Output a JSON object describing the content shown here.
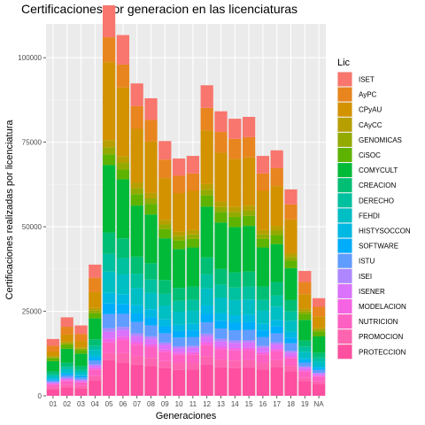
{
  "chart_data": {
    "type": "bar",
    "stacked": true,
    "title": "Certificaciones por generacion en las licenciaturas",
    "xlabel": "Generaciones",
    "ylabel": "Certificaciones realizadas por licenciatura",
    "ylim": [
      0,
      110000
    ],
    "yticks": [
      0,
      25000,
      50000,
      75000,
      100000
    ],
    "ytick_labels": [
      "0",
      "25000",
      "50000",
      "75000",
      "100000"
    ],
    "grid": true,
    "legend": {
      "title": "Lic",
      "placement": "right"
    },
    "categories": [
      "01",
      "02",
      "03",
      "04",
      "05",
      "06",
      "07",
      "08",
      "09",
      "10",
      "11",
      "12",
      "13",
      "14",
      "15",
      "16",
      "17",
      "18",
      "19",
      "NA"
    ],
    "totals": [
      16800,
      23200,
      20800,
      38800,
      105000,
      97000,
      84000,
      80000,
      68500,
      63800,
      64500,
      83500,
      76500,
      74500,
      75000,
      64500,
      66000,
      55500,
      36200,
      28300
    ],
    "series": [
      {
        "name": "ISET",
        "color": "#F8766D"
      },
      {
        "name": "AyPC",
        "color": "#E8851E"
      },
      {
        "name": "CPyAU",
        "color": "#D39200"
      },
      {
        "name": "CAyCC",
        "color": "#B79F00"
      },
      {
        "name": "GENOMICAS",
        "color": "#93AA00"
      },
      {
        "name": "CiSOC",
        "color": "#5EB300"
      },
      {
        "name": "COMYCULT",
        "color": "#00BA38"
      },
      {
        "name": "CREACION",
        "color": "#00BF74"
      },
      {
        "name": "DERECHO",
        "color": "#00C19F"
      },
      {
        "name": "FEHDI",
        "color": "#00BFC4"
      },
      {
        "name": "HISTYSOCCON",
        "color": "#00B9E3"
      },
      {
        "name": "SOFTWARE",
        "color": "#00ADFA"
      },
      {
        "name": "ISTU",
        "color": "#619CFF"
      },
      {
        "name": "ISEI",
        "color": "#AE87FF"
      },
      {
        "name": "ISENER",
        "color": "#DB72FB"
      },
      {
        "name": "MODELACION",
        "color": "#F564E3"
      },
      {
        "name": "NUTRICION",
        "color": "#FF61C3"
      },
      {
        "name": "PROMOCION",
        "color": "#FF64B0"
      },
      {
        "name": "PROTECCION",
        "color": "#FF4FA0"
      }
    ],
    "stack_fractions": [
      [
        0.12,
        0.1,
        0.08,
        0.02,
        0.02,
        0.05,
        0.18,
        0.05,
        0.03,
        0.04,
        0.02,
        0.02,
        0.03,
        0.01,
        0.02,
        0.01,
        0.05,
        0.03,
        0.12
      ],
      [
        0.12,
        0.1,
        0.09,
        0.02,
        0.02,
        0.05,
        0.18,
        0.05,
        0.03,
        0.04,
        0.02,
        0.02,
        0.03,
        0.01,
        0.02,
        0.01,
        0.05,
        0.03,
        0.11
      ],
      [
        0.12,
        0.1,
        0.09,
        0.02,
        0.02,
        0.05,
        0.18,
        0.05,
        0.03,
        0.04,
        0.02,
        0.02,
        0.03,
        0.01,
        0.02,
        0.01,
        0.05,
        0.03,
        0.11
      ],
      [
        0.1,
        0.11,
        0.12,
        0.02,
        0.02,
        0.04,
        0.16,
        0.05,
        0.03,
        0.04,
        0.02,
        0.02,
        0.03,
        0.01,
        0.02,
        0.01,
        0.05,
        0.03,
        0.12
      ],
      [
        0.09,
        0.07,
        0.22,
        0.02,
        0.02,
        0.03,
        0.19,
        0.06,
        0.05,
        0.06,
        0.03,
        0.03,
        0.04,
        0.01,
        0.02,
        0.01,
        0.03,
        0.02,
        0.1
      ],
      [
        0.09,
        0.07,
        0.21,
        0.02,
        0.02,
        0.03,
        0.18,
        0.06,
        0.05,
        0.06,
        0.03,
        0.03,
        0.04,
        0.01,
        0.02,
        0.01,
        0.04,
        0.03,
        0.1
      ],
      [
        0.08,
        0.08,
        0.19,
        0.02,
        0.02,
        0.04,
        0.18,
        0.06,
        0.05,
        0.06,
        0.03,
        0.03,
        0.04,
        0.01,
        0.02,
        0.01,
        0.04,
        0.03,
        0.11
      ],
      [
        0.08,
        0.08,
        0.19,
        0.02,
        0.02,
        0.04,
        0.18,
        0.06,
        0.05,
        0.06,
        0.03,
        0.03,
        0.04,
        0.01,
        0.02,
        0.01,
        0.04,
        0.03,
        0.11
      ],
      [
        0.08,
        0.08,
        0.18,
        0.02,
        0.02,
        0.04,
        0.18,
        0.06,
        0.05,
        0.06,
        0.03,
        0.03,
        0.04,
        0.01,
        0.02,
        0.01,
        0.04,
        0.03,
        0.12
      ],
      [
        0.08,
        0.08,
        0.18,
        0.02,
        0.02,
        0.04,
        0.18,
        0.06,
        0.05,
        0.06,
        0.03,
        0.03,
        0.04,
        0.01,
        0.02,
        0.01,
        0.04,
        0.03,
        0.12
      ],
      [
        0.08,
        0.08,
        0.18,
        0.02,
        0.02,
        0.04,
        0.18,
        0.06,
        0.05,
        0.06,
        0.03,
        0.03,
        0.04,
        0.01,
        0.02,
        0.01,
        0.04,
        0.03,
        0.12
      ],
      [
        0.08,
        0.08,
        0.19,
        0.02,
        0.02,
        0.04,
        0.18,
        0.06,
        0.05,
        0.06,
        0.03,
        0.03,
        0.04,
        0.01,
        0.02,
        0.01,
        0.04,
        0.03,
        0.11
      ],
      [
        0.08,
        0.08,
        0.19,
        0.02,
        0.02,
        0.04,
        0.18,
        0.06,
        0.05,
        0.06,
        0.03,
        0.03,
        0.04,
        0.01,
        0.02,
        0.01,
        0.04,
        0.03,
        0.11
      ],
      [
        0.08,
        0.08,
        0.19,
        0.02,
        0.02,
        0.04,
        0.18,
        0.06,
        0.05,
        0.06,
        0.03,
        0.03,
        0.04,
        0.01,
        0.02,
        0.01,
        0.04,
        0.03,
        0.11
      ],
      [
        0.08,
        0.08,
        0.19,
        0.02,
        0.02,
        0.04,
        0.18,
        0.06,
        0.05,
        0.06,
        0.03,
        0.03,
        0.04,
        0.01,
        0.02,
        0.01,
        0.04,
        0.03,
        0.11
      ],
      [
        0.08,
        0.08,
        0.18,
        0.02,
        0.02,
        0.04,
        0.18,
        0.06,
        0.05,
        0.06,
        0.03,
        0.03,
        0.04,
        0.01,
        0.02,
        0.01,
        0.04,
        0.03,
        0.12
      ],
      [
        0.08,
        0.08,
        0.18,
        0.02,
        0.02,
        0.04,
        0.17,
        0.06,
        0.05,
        0.06,
        0.03,
        0.03,
        0.04,
        0.01,
        0.02,
        0.01,
        0.04,
        0.03,
        0.13
      ],
      [
        0.08,
        0.08,
        0.18,
        0.02,
        0.02,
        0.04,
        0.17,
        0.06,
        0.05,
        0.06,
        0.03,
        0.03,
        0.04,
        0.01,
        0.02,
        0.01,
        0.04,
        0.03,
        0.13
      ],
      [
        0.09,
        0.1,
        0.12,
        0.02,
        0.02,
        0.05,
        0.17,
        0.05,
        0.04,
        0.05,
        0.02,
        0.02,
        0.03,
        0.01,
        0.02,
        0.01,
        0.05,
        0.03,
        0.12
      ],
      [
        0.09,
        0.1,
        0.12,
        0.02,
        0.02,
        0.05,
        0.17,
        0.05,
        0.04,
        0.05,
        0.02,
        0.02,
        0.03,
        0.01,
        0.02,
        0.01,
        0.05,
        0.03,
        0.12
      ]
    ]
  }
}
